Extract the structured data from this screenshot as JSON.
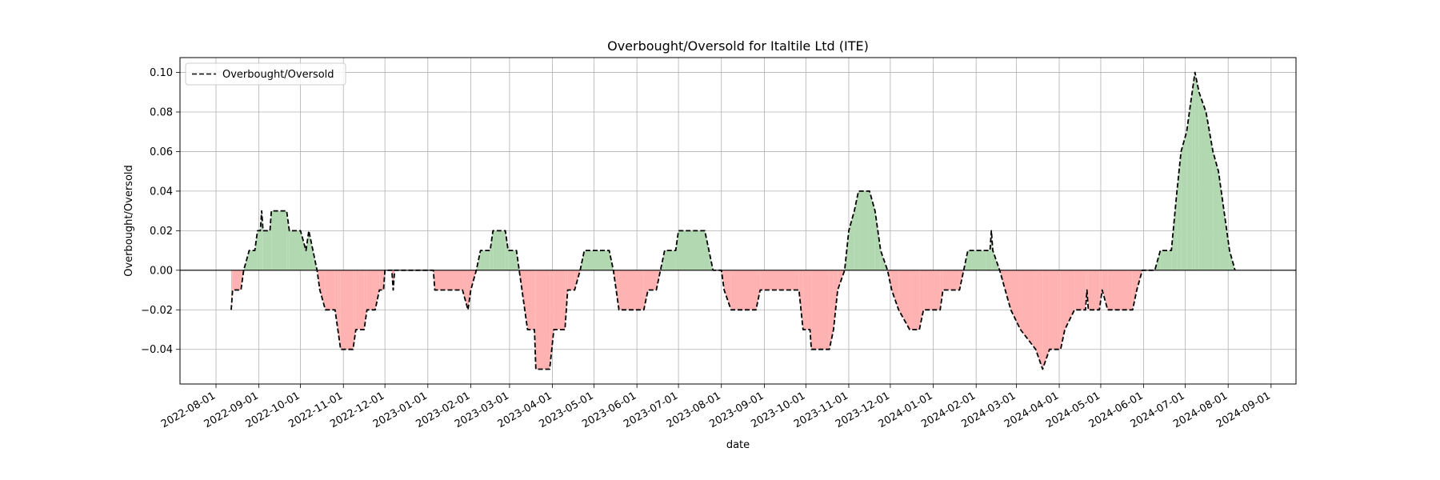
{
  "chart_data": {
    "type": "line",
    "title": "Overbought/Oversold for Italtile Ltd (ITE)",
    "xlabel": "date",
    "ylabel": "Overbought/Oversold",
    "xlim": [
      "2022-07-06",
      "2024-09-19"
    ],
    "ylim": [
      -0.0575,
      0.1075
    ],
    "yticks": [
      -0.04,
      -0.02,
      0.0,
      0.02,
      0.04,
      0.06,
      0.08,
      0.1
    ],
    "ytick_labels": [
      "−0.04",
      "−0.02",
      "0.00",
      "0.02",
      "0.04",
      "0.06",
      "0.08",
      "0.10"
    ],
    "xticks": [
      "2022-08-01",
      "2022-09-01",
      "2022-10-01",
      "2022-11-01",
      "2022-12-01",
      "2023-01-01",
      "2023-02-01",
      "2023-03-01",
      "2023-04-01",
      "2023-05-01",
      "2023-06-01",
      "2023-07-01",
      "2023-08-01",
      "2023-09-01",
      "2023-10-01",
      "2023-11-01",
      "2023-12-01",
      "2024-01-01",
      "2024-02-01",
      "2024-03-01",
      "2024-04-01",
      "2024-05-01",
      "2024-06-01",
      "2024-07-01",
      "2024-08-01",
      "2024-09-01"
    ],
    "grid": true,
    "legend_position": "top-left",
    "fill_positive_color": "#b2d8b2",
    "fill_negative_color": "#ffb2b2",
    "line_color": "#000000",
    "zero_line": true,
    "series": [
      {
        "name": "Overbought/Oversold",
        "style": "dashed",
        "points": [
          [
            "2022-08-12",
            -0.02
          ],
          [
            "2022-08-13",
            -0.01
          ],
          [
            "2022-08-19",
            -0.01
          ],
          [
            "2022-08-21",
            0.0
          ],
          [
            "2022-08-25",
            0.01
          ],
          [
            "2022-08-29",
            0.01
          ],
          [
            "2022-08-31",
            0.02
          ],
          [
            "2022-09-02",
            0.02
          ],
          [
            "2022-09-03",
            0.03
          ],
          [
            "2022-09-04",
            0.02
          ],
          [
            "2022-09-09",
            0.02
          ],
          [
            "2022-09-10",
            0.03
          ],
          [
            "2022-09-21",
            0.03
          ],
          [
            "2022-09-23",
            0.02
          ],
          [
            "2022-10-01",
            0.02
          ],
          [
            "2022-10-05",
            0.01
          ],
          [
            "2022-10-07",
            0.02
          ],
          [
            "2022-10-10",
            0.01
          ],
          [
            "2022-10-13",
            0.0
          ],
          [
            "2022-10-15",
            -0.01
          ],
          [
            "2022-10-19",
            -0.02
          ],
          [
            "2022-10-26",
            -0.02
          ],
          [
            "2022-10-28",
            -0.03
          ],
          [
            "2022-10-30",
            -0.04
          ],
          [
            "2022-11-08",
            -0.04
          ],
          [
            "2022-11-10",
            -0.03
          ],
          [
            "2022-11-16",
            -0.03
          ],
          [
            "2022-11-18",
            -0.02
          ],
          [
            "2022-11-24",
            -0.02
          ],
          [
            "2022-11-27",
            -0.01
          ],
          [
            "2022-11-30",
            -0.01
          ],
          [
            "2022-12-01",
            0.0
          ],
          [
            "2022-12-06",
            0.0
          ],
          [
            "2022-12-07",
            -0.01
          ],
          [
            "2022-12-08",
            0.0
          ],
          [
            "2023-01-05",
            0.0
          ],
          [
            "2023-01-06",
            -0.01
          ],
          [
            "2023-01-26",
            -0.01
          ],
          [
            "2023-01-30",
            -0.02
          ],
          [
            "2023-02-01",
            -0.01
          ],
          [
            "2023-02-05",
            0.0
          ],
          [
            "2023-02-08",
            0.01
          ],
          [
            "2023-02-15",
            0.01
          ],
          [
            "2023-02-17",
            0.02
          ],
          [
            "2023-02-26",
            0.02
          ],
          [
            "2023-02-28",
            0.01
          ],
          [
            "2023-03-06",
            0.01
          ],
          [
            "2023-03-08",
            0.0
          ],
          [
            "2023-03-10",
            -0.01
          ],
          [
            "2023-03-14",
            -0.03
          ],
          [
            "2023-03-19",
            -0.03
          ],
          [
            "2023-03-20",
            -0.05
          ],
          [
            "2023-03-30",
            -0.05
          ],
          [
            "2023-04-02",
            -0.03
          ],
          [
            "2023-04-10",
            -0.03
          ],
          [
            "2023-04-12",
            -0.01
          ],
          [
            "2023-04-17",
            -0.01
          ],
          [
            "2023-04-21",
            0.0
          ],
          [
            "2023-04-24",
            0.01
          ],
          [
            "2023-05-12",
            0.01
          ],
          [
            "2023-05-15",
            0.0
          ],
          [
            "2023-05-17",
            -0.01
          ],
          [
            "2023-05-19",
            -0.02
          ],
          [
            "2023-06-06",
            -0.02
          ],
          [
            "2023-06-09",
            -0.01
          ],
          [
            "2023-06-15",
            -0.01
          ],
          [
            "2023-06-18",
            0.0
          ],
          [
            "2023-06-21",
            0.01
          ],
          [
            "2023-06-29",
            0.01
          ],
          [
            "2023-07-01",
            0.02
          ],
          [
            "2023-07-20",
            0.02
          ],
          [
            "2023-07-23",
            0.01
          ],
          [
            "2023-07-26",
            0.0
          ],
          [
            "2023-08-01",
            0.0
          ],
          [
            "2023-08-03",
            -0.01
          ],
          [
            "2023-08-08",
            -0.02
          ],
          [
            "2023-08-26",
            -0.02
          ],
          [
            "2023-08-29",
            -0.01
          ],
          [
            "2023-09-26",
            -0.01
          ],
          [
            "2023-09-29",
            -0.03
          ],
          [
            "2023-10-04",
            -0.03
          ],
          [
            "2023-10-05",
            -0.04
          ],
          [
            "2023-10-18",
            -0.04
          ],
          [
            "2023-10-21",
            -0.03
          ],
          [
            "2023-10-24",
            -0.01
          ],
          [
            "2023-10-29",
            0.0
          ],
          [
            "2023-11-01",
            0.02
          ],
          [
            "2023-11-05",
            0.03
          ],
          [
            "2023-11-08",
            0.04
          ],
          [
            "2023-11-16",
            0.04
          ],
          [
            "2023-11-20",
            0.03
          ],
          [
            "2023-11-24",
            0.01
          ],
          [
            "2023-11-29",
            0.0
          ],
          [
            "2023-12-02",
            -0.01
          ],
          [
            "2023-12-07",
            -0.02
          ],
          [
            "2023-12-15",
            -0.03
          ],
          [
            "2023-12-22",
            -0.03
          ],
          [
            "2023-12-25",
            -0.02
          ],
          [
            "2024-01-06",
            -0.02
          ],
          [
            "2024-01-08",
            -0.01
          ],
          [
            "2024-01-20",
            -0.01
          ],
          [
            "2024-01-26",
            0.01
          ],
          [
            "2024-02-08",
            0.01
          ],
          [
            "2024-02-11",
            0.01
          ],
          [
            "2024-02-12",
            0.02
          ],
          [
            "2024-02-13",
            0.01
          ],
          [
            "2024-02-18",
            -0.0
          ],
          [
            "2024-02-22",
            -0.01
          ],
          [
            "2024-02-26",
            -0.02
          ],
          [
            "2024-03-04",
            -0.03
          ],
          [
            "2024-03-15",
            -0.04
          ],
          [
            "2024-03-20",
            -0.05
          ],
          [
            "2024-03-25",
            -0.04
          ],
          [
            "2024-04-02",
            -0.04
          ],
          [
            "2024-04-05",
            -0.03
          ],
          [
            "2024-04-12",
            -0.02
          ],
          [
            "2024-04-20",
            -0.02
          ],
          [
            "2024-04-21",
            -0.01
          ],
          [
            "2024-04-22",
            -0.02
          ],
          [
            "2024-04-30",
            -0.02
          ],
          [
            "2024-05-02",
            -0.01
          ],
          [
            "2024-05-06",
            -0.02
          ],
          [
            "2024-05-24",
            -0.02
          ],
          [
            "2024-05-27",
            -0.01
          ],
          [
            "2024-05-31",
            0.0
          ],
          [
            "2024-06-09",
            0.0
          ],
          [
            "2024-06-13",
            0.01
          ],
          [
            "2024-06-21",
            0.01
          ],
          [
            "2024-06-25",
            0.04
          ],
          [
            "2024-06-28",
            0.06
          ],
          [
            "2024-07-02",
            0.07
          ],
          [
            "2024-07-06",
            0.09
          ],
          [
            "2024-07-08",
            0.1
          ],
          [
            "2024-07-11",
            0.09
          ],
          [
            "2024-07-16",
            0.08
          ],
          [
            "2024-07-21",
            0.06
          ],
          [
            "2024-07-25",
            0.05
          ],
          [
            "2024-07-29",
            0.03
          ],
          [
            "2024-08-02",
            0.01
          ],
          [
            "2024-08-06",
            0.0
          ]
        ]
      }
    ]
  }
}
